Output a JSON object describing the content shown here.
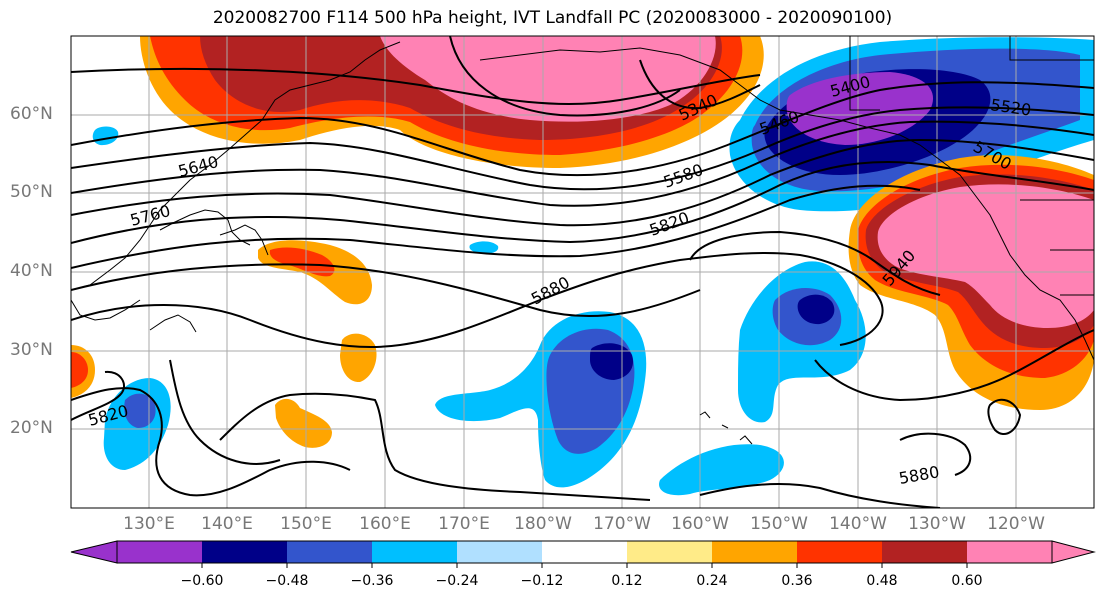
{
  "title": "2020082700 F114 500 hPa height, IVT Landfall PC (2020083000 - 2020090100)",
  "lat_labels": [
    "60°N",
    "50°N",
    "40°N",
    "30°N",
    "20°N"
  ],
  "lon_labels": [
    "130°E",
    "140°E",
    "150°E",
    "160°E",
    "170°E",
    "180°W",
    "170°W",
    "160°W",
    "150°W",
    "140°W",
    "130°W",
    "120°W"
  ],
  "contour_labels": [
    "5400",
    "5520",
    "5340",
    "5460",
    "5580",
    "5640",
    "5700",
    "5760",
    "5820",
    "5880",
    "5940",
    "5820",
    "5880"
  ],
  "colorbar": {
    "tick_labels": [
      "−0.60",
      "−0.48",
      "−0.36",
      "−0.24",
      "−0.12",
      "0.12",
      "0.24",
      "0.36",
      "0.48",
      "0.60"
    ],
    "colors": [
      "#9932cc",
      "#000088",
      "#3355cc",
      "#00bfff",
      "#b0e0ff",
      "#ffffff",
      "#ffeb88",
      "#ffa500",
      "#ff3300",
      "#b22222",
      "#ff82b4"
    ]
  },
  "colors": {
    "gridline": "#aaaaaa",
    "contour": "#000000",
    "coastline": "#000000"
  }
}
